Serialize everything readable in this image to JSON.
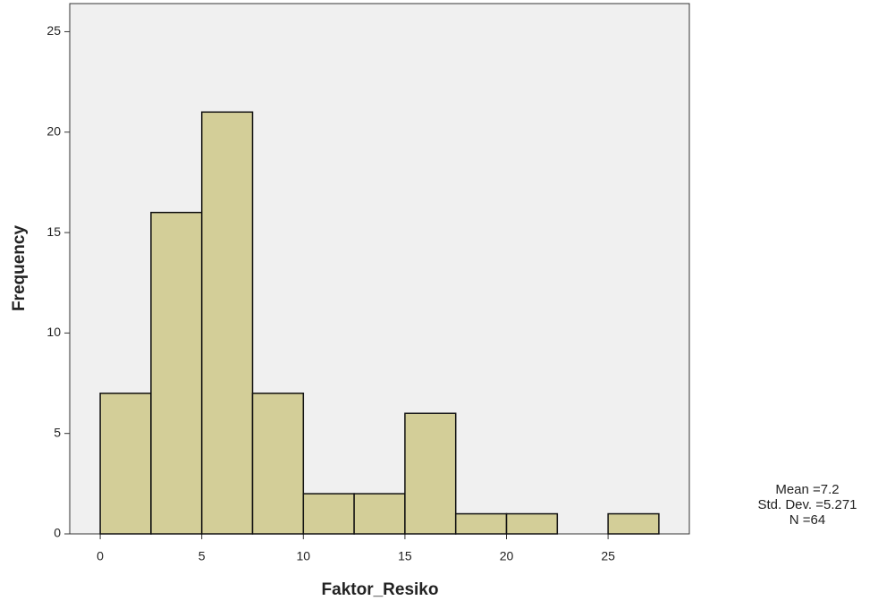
{
  "chart_data": {
    "type": "histogram",
    "bins": [
      0,
      2.5,
      5,
      7.5,
      10,
      12.5,
      15,
      17.5,
      20,
      22.5,
      25,
      27.5
    ],
    "counts": [
      7,
      16,
      21,
      7,
      2,
      2,
      6,
      1,
      1,
      0,
      1
    ],
    "color": "#d3ce98",
    "x_label": "Faktor_Resiko",
    "y_label": "Frequency",
    "xlim": [
      -1.5,
      29
    ],
    "xticks": [
      0,
      5,
      10,
      15,
      20,
      25
    ],
    "ylim": [
      0,
      26.4
    ],
    "yticks": [
      0,
      5,
      10,
      15,
      20,
      25
    ],
    "stats": [
      "Mean =7.2",
      "Std. Dev. =5.271",
      "N =64"
    ]
  }
}
